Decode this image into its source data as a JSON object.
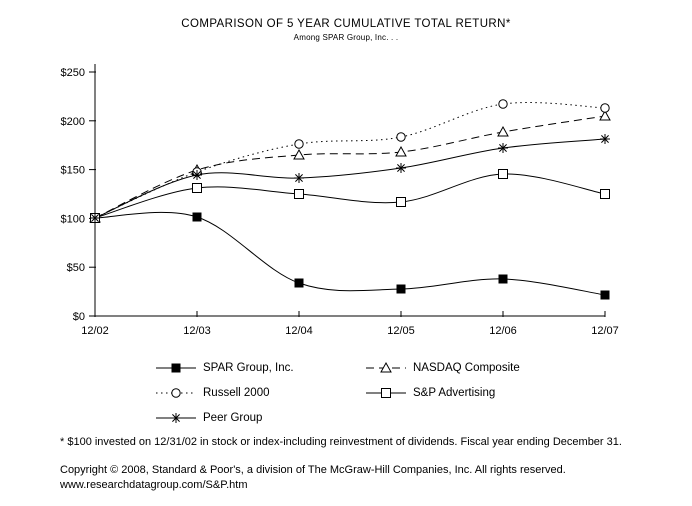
{
  "page": {
    "title": "COMPARISON OF 5 YEAR CUMULATIVE TOTAL RETURN*",
    "subtitle": "Among SPAR Group, Inc. . .",
    "footnote": "* $100 invested on 12/31/02 in stock or index-including reinvestment of dividends.  Fiscal year ending December 31.",
    "copyright": "Copyright © 2008, Standard & Poor's, a division of The McGraw-Hill Companies, Inc. All rights reserved.",
    "website": "www.researchdatagroup.com/S&P.htm"
  },
  "chart_data": {
    "type": "line",
    "title": "COMPARISON OF 5 YEAR CUMULATIVE TOTAL RETURN*",
    "subtitle": "Among SPAR Group, Inc. . .",
    "categories": [
      "12/02",
      "12/03",
      "12/04",
      "12/05",
      "12/06",
      "12/07"
    ],
    "series": [
      {
        "name": "SPAR Group, Inc.",
        "values": [
          100,
          101,
          34,
          28,
          38,
          22
        ],
        "line": "solid",
        "marker": "square-filled"
      },
      {
        "name": "NASDAQ Composite",
        "values": [
          100,
          150,
          165,
          168,
          189,
          205
        ],
        "line": "dashed",
        "marker": "triangle-open"
      },
      {
        "name": "Russell 2000",
        "values": [
          100,
          148,
          176,
          183,
          217,
          213
        ],
        "line": "dotted",
        "marker": "circle-open"
      },
      {
        "name": "S&P Advertising",
        "values": [
          100,
          131,
          125,
          117,
          146,
          125
        ],
        "line": "solid",
        "marker": "square-open"
      },
      {
        "name": "Peer Group",
        "values": [
          100,
          144,
          141,
          152,
          172,
          181
        ],
        "line": "solid",
        "marker": "asterisk"
      }
    ],
    "ylim": [
      0,
      250
    ],
    "ytick_step": 50,
    "ytick_labels": [
      "$0",
      "$50",
      "$100",
      "$150",
      "$200",
      "$250"
    ],
    "xlabel": "",
    "ylabel": "",
    "grid": false,
    "legend_position": "bottom-two-columns",
    "line_color": "#000000",
    "background_color": "#ffffff"
  }
}
